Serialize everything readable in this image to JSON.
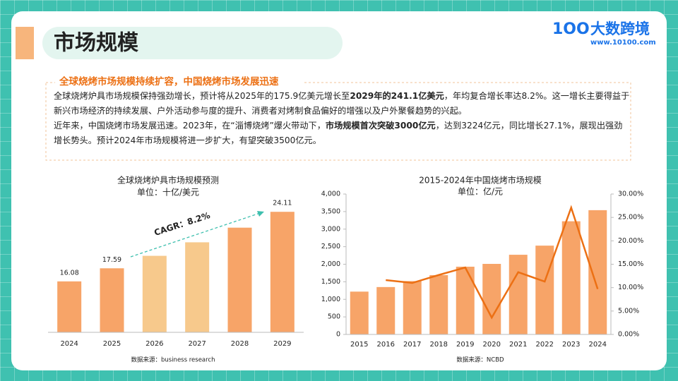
{
  "header": {
    "title": "市场规模",
    "logo_icon": "1OO",
    "logo_name": "大数跨境",
    "logo_url": "www.10100.com"
  },
  "section": {
    "heading": "全球烧烤市场规模持续扩容，中国烧烤市场发展迅速",
    "paragraphs": [
      [
        {
          "text": "全球烧烤炉具市场规模保持强劲增长，预计将从2025年的175.9亿美元增长至",
          "bold": false
        },
        {
          "text": "2029年的241.1亿美元",
          "bold": true
        },
        {
          "text": "，年均复合增长率达8.2%。这一增长主要得益于新兴市场经济的持续发展、户外活动参与度的提升、消费者对烤制食品偏好的增强以及户外聚餐趋势的兴起。",
          "bold": false
        }
      ],
      [
        {
          "text": "近年来，中国烧烤市场发展迅速。2023年，在“淄博烧烤”爆火带动下，",
          "bold": false
        },
        {
          "text": "市场规模首次突破3000亿元",
          "bold": true
        },
        {
          "text": "，达到3224亿元，同比增长27.1%，展现出强劲增长势头。预计2024年市场规模将进一步扩大，有望突破3500亿元。",
          "bold": false
        }
      ]
    ]
  },
  "chart_data": [
    {
      "type": "bar",
      "title": "全球烧烤炉具市场规模预测",
      "subtitle": "单位：十亿/美元",
      "source": "数据来源：business research",
      "categories": [
        "2024",
        "2025",
        "2026",
        "2027",
        "2028",
        "2029"
      ],
      "values": [
        16.08,
        17.59,
        19.03,
        20.59,
        22.28,
        24.11
      ],
      "value_labels": [
        "16.08",
        "17.59",
        null,
        null,
        null,
        "24.11"
      ],
      "colors": [
        "#f7a468",
        "#f7a468",
        "#f7c98c",
        "#f7c98c",
        "#f7a468",
        "#f7a468"
      ],
      "ylim": [
        10.2,
        26
      ],
      "annotation": "CAGR：8.2%",
      "annotation_color": "#3dbfae"
    },
    {
      "type": "bar",
      "title": "2015-2024年中国烧烤市场规模",
      "subtitle": "单位：亿/元",
      "source": "数据来源：NCBD",
      "categories": [
        "2015",
        "2016",
        "2017",
        "2018",
        "2019",
        "2020",
        "2021",
        "2022",
        "2023",
        "2024"
      ],
      "series": [
        {
          "type": "bar",
          "color": "#f7a468",
          "values": [
            1220,
            1350,
            1520,
            1690,
            1930,
            2010,
            2270,
            2530,
            3224,
            3540
          ]
        },
        {
          "type": "line",
          "axis": "y2",
          "color": "#ec7014",
          "values": [
            null,
            11.6,
            11.0,
            12.7,
            14.3,
            3.6,
            13.3,
            11.3,
            27.1,
            9.7
          ]
        }
      ],
      "ylim": [
        0,
        4000
      ],
      "yticks": [
        0,
        500,
        {
          "value": 1000,
          "label": "1,000"
        },
        {
          "value": 1500,
          "label": "1,500"
        },
        {
          "value": 2000,
          "label": "2,000"
        },
        {
          "value": 2500,
          "label": "2,500"
        },
        {
          "value": 3000,
          "label": "3,000"
        },
        {
          "value": 3500,
          "label": "3,500"
        },
        {
          "value": 4000,
          "label": "4,000"
        }
      ],
      "y2lim": [
        0,
        30
      ],
      "y2ticks": [
        {
          "value": 0,
          "label": "0.00%"
        },
        {
          "value": 5,
          "label": "5.00%"
        },
        {
          "value": 10,
          "label": "10.00%"
        },
        {
          "value": 15,
          "label": "15.00%"
        },
        {
          "value": 20,
          "label": "20.00%"
        },
        {
          "value": 25,
          "label": "25.00%"
        },
        {
          "value": 30,
          "label": "30.00%"
        }
      ]
    }
  ]
}
